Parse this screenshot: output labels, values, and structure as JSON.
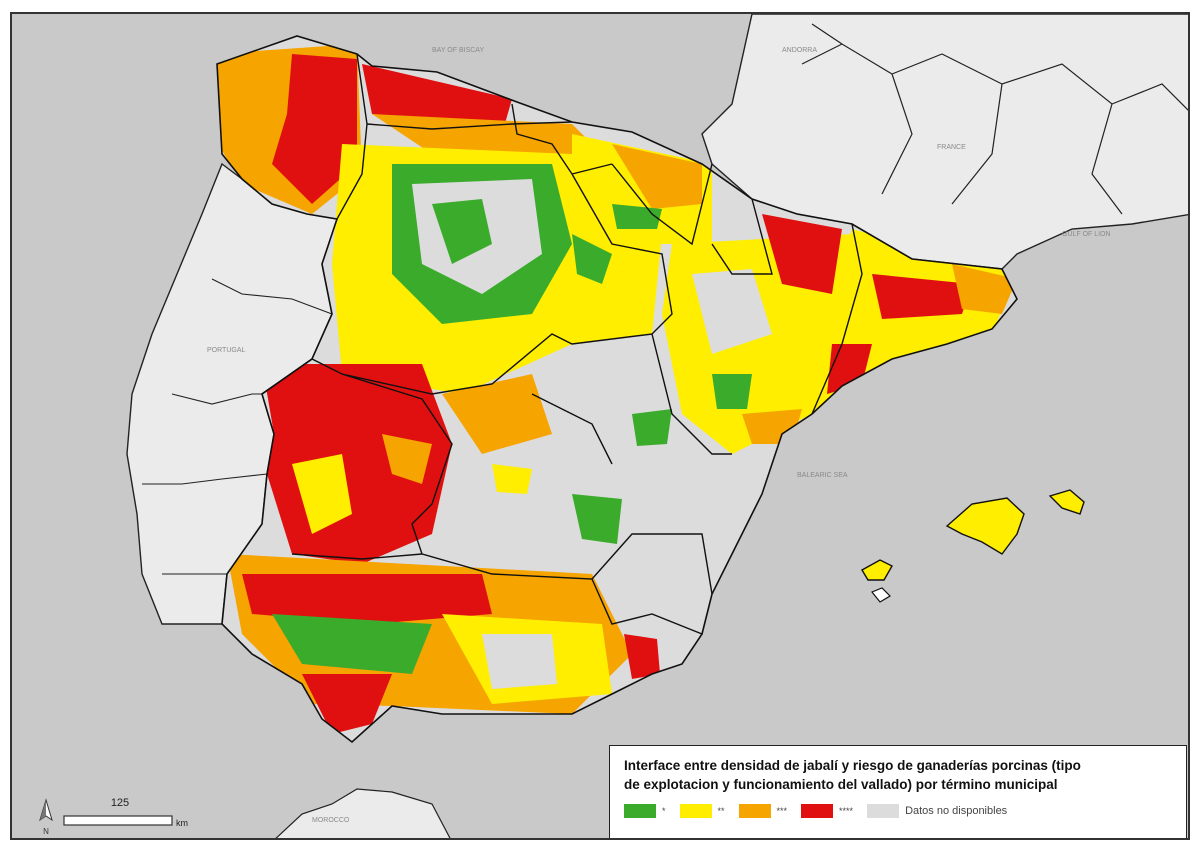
{
  "legend": {
    "title_line1": "Interface entre densidad de jabalí y riesgo de ganaderías porcinas (tipo",
    "title_line2": "de explotacion y funcionamiento del vallado) por término municipal",
    "items": [
      {
        "label": "*",
        "color": "#3aab2b"
      },
      {
        "label": "**",
        "color": "#ffee00"
      },
      {
        "label": "***",
        "color": "#f6a400"
      },
      {
        "label": "****",
        "color": "#e01010"
      },
      {
        "label": "Datos no disponibles",
        "color": "#dcdcdc"
      }
    ]
  },
  "scale": {
    "value": "125",
    "unit": "km"
  },
  "north_arrow": {
    "label": "N"
  },
  "map": {
    "sea_color": "#c9c9c9",
    "land_color": "#ebebeb",
    "background_labels": [
      "PORTUGAL",
      "FRANCE",
      "ANDORRA",
      "BAY OF BISCAY",
      "GULF OF LION",
      "BALEARIC SEA",
      "MOROCCO"
    ]
  }
}
